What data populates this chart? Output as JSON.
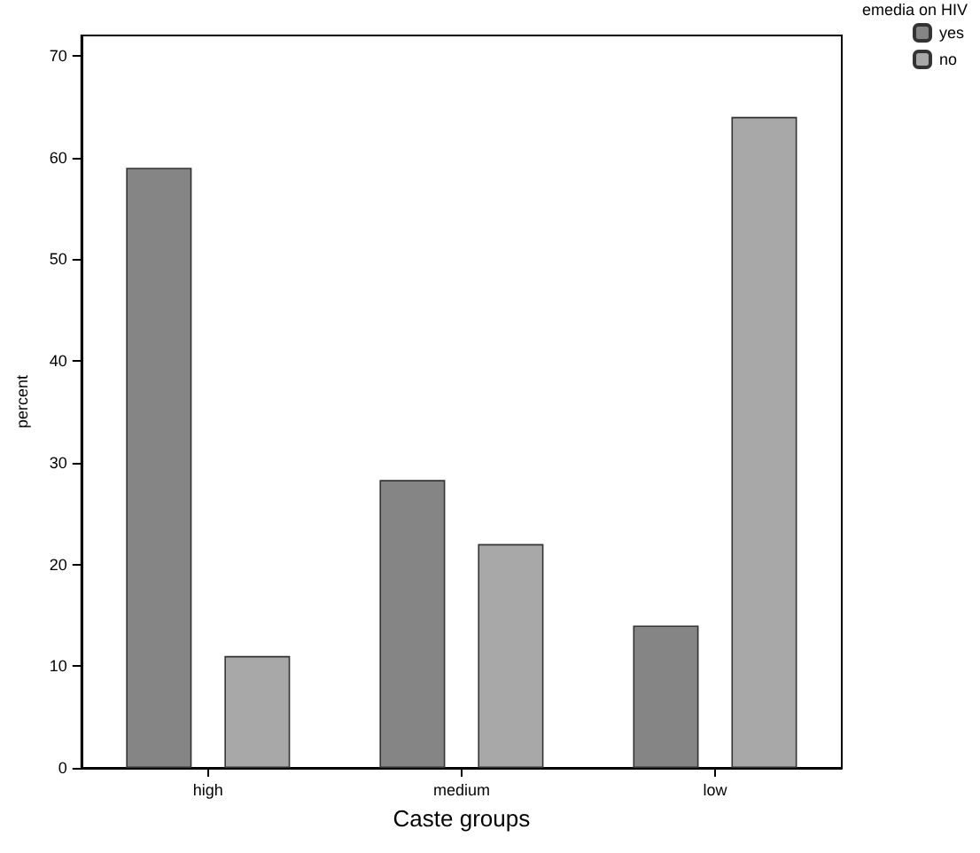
{
  "chart_data": {
    "type": "bar",
    "xlabel": "Caste groups",
    "ylabel": "percent",
    "legend_title": "emedia on HIV",
    "categories": [
      "high",
      "medium",
      "low"
    ],
    "series": [
      {
        "name": "yes",
        "color": "#858585",
        "values": [
          59,
          28.3,
          14
        ]
      },
      {
        "name": "no",
        "color": "#a8a8a8",
        "values": [
          11,
          22,
          64
        ]
      }
    ],
    "ylim": [
      0,
      72
    ],
    "yticks": [
      0,
      10,
      20,
      30,
      40,
      50,
      60,
      70
    ],
    "grid": false,
    "legend": "top right"
  }
}
